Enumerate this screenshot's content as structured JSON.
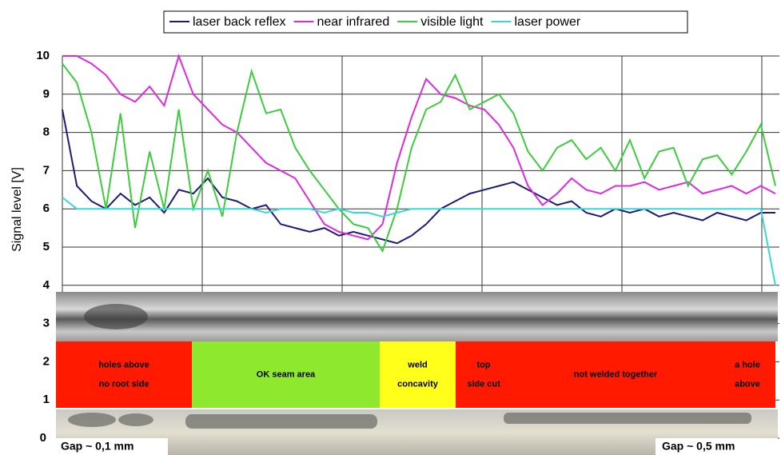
{
  "chart_data": {
    "type": "line",
    "y_label": "Signal level [V]",
    "ylim": [
      0,
      10
    ],
    "yticks": [
      0,
      1,
      2,
      3,
      4,
      5,
      6,
      7,
      8,
      9,
      10
    ],
    "grid": true,
    "series": [
      {
        "name": "laser back reflex",
        "color": "#1c1c78",
        "values": [
          8.6,
          6.6,
          6.2,
          6.0,
          6.4,
          6.1,
          6.3,
          5.9,
          6.5,
          6.4,
          6.8,
          6.3,
          6.2,
          6.0,
          6.1,
          5.6,
          5.5,
          5.4,
          5.5,
          5.3,
          5.4,
          5.3,
          5.2,
          5.1,
          5.3,
          5.6,
          6.0,
          6.2,
          6.4,
          6.5,
          6.6,
          6.7,
          6.5,
          6.3,
          6.1,
          6.2,
          5.9,
          5.8,
          6.0,
          5.9,
          6.0,
          5.8,
          5.9,
          5.8,
          5.7,
          5.9,
          5.8,
          5.7,
          5.9,
          5.9
        ]
      },
      {
        "name": "near infrared",
        "color": "#e028e0",
        "values": [
          10,
          10,
          9.8,
          9.5,
          9.0,
          8.8,
          9.2,
          8.7,
          10,
          9.0,
          8.6,
          8.2,
          8.0,
          7.6,
          7.2,
          7.0,
          6.8,
          6.2,
          5.6,
          5.4,
          5.3,
          5.2,
          5.6,
          7.2,
          8.4,
          9.4,
          9.0,
          8.9,
          8.7,
          8.6,
          8.2,
          7.6,
          6.6,
          6.1,
          6.4,
          6.8,
          6.5,
          6.4,
          6.6,
          6.6,
          6.7,
          6.5,
          6.6,
          6.7,
          6.4,
          6.5,
          6.6,
          6.4,
          6.6,
          6.4
        ]
      },
      {
        "name": "visible light",
        "color": "#3ccc3c",
        "values": [
          9.8,
          9.3,
          8.0,
          6.0,
          8.5,
          5.5,
          7.5,
          6.0,
          8.6,
          6.0,
          7.0,
          5.8,
          8.0,
          9.6,
          8.5,
          8.6,
          7.6,
          7.0,
          6.5,
          6.0,
          5.6,
          5.5,
          4.9,
          6.0,
          7.6,
          8.6,
          8.8,
          9.5,
          8.6,
          8.8,
          9.0,
          8.5,
          7.5,
          7.0,
          7.6,
          7.8,
          7.3,
          7.6,
          7.0,
          7.8,
          6.8,
          7.5,
          7.6,
          6.6,
          7.3,
          7.4,
          6.9,
          7.5,
          8.2,
          6.6
        ]
      },
      {
        "name": "laser power",
        "color": "#38d8d8",
        "values": [
          6.3,
          6.0,
          6.0,
          6.0,
          6.0,
          6.0,
          6.0,
          6.0,
          6.0,
          6.0,
          6.0,
          6.0,
          6.0,
          6.0,
          5.9,
          6.0,
          6.0,
          6.0,
          5.9,
          6.0,
          5.9,
          5.9,
          5.8,
          5.9,
          6.0,
          6.0,
          6.0,
          6.0,
          6.0,
          6.0,
          6.0,
          6.0,
          6.0,
          6.0,
          6.0,
          6.0,
          6.0,
          6.0,
          6.0,
          6.0,
          6.0,
          6.0,
          6.0,
          6.0,
          6.0,
          6.0,
          6.0,
          6.0,
          6.0,
          4.0
        ]
      }
    ],
    "zones": [
      {
        "lines": [
          "holes above",
          "no root side"
        ],
        "color": "#ff1a00"
      },
      {
        "lines": [
          "OK seam area"
        ],
        "color": "#8ee82e"
      },
      {
        "lines": [
          "weld",
          "concavity"
        ],
        "color": "#ffff1a"
      },
      {
        "lines": [
          "top",
          "side cut"
        ],
        "color": "#ff1a00"
      },
      {
        "lines": [
          "not welded together"
        ],
        "color": "#ff1a00"
      },
      {
        "lines": [
          "a hole",
          "above"
        ],
        "color": "#ff1a00"
      }
    ],
    "annotations": [
      "Gap  ~ 0,1 mm",
      "Gap  ~ 0,5 mm"
    ]
  }
}
